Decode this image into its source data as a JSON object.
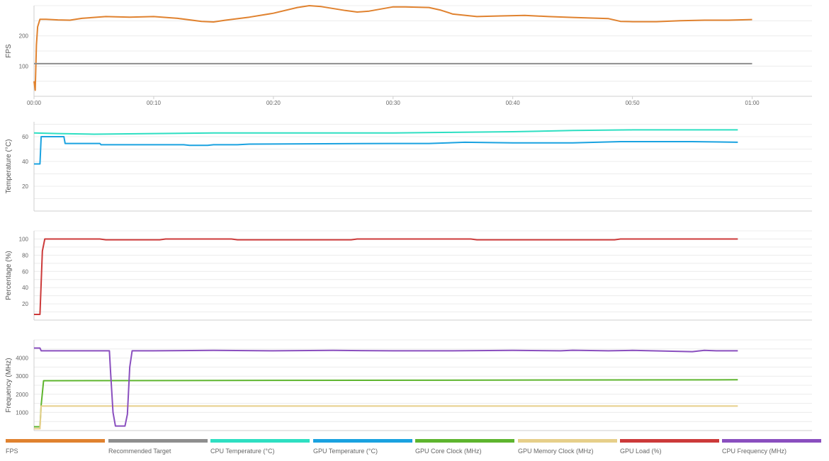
{
  "chart_data": [
    {
      "type": "line",
      "ylabel": "FPS",
      "yticks": [
        "100",
        "200"
      ],
      "ylim": [
        0,
        300
      ],
      "xlabel": "",
      "xticks": [
        "00:00",
        "00:10",
        "00:20",
        "00:30",
        "00:40",
        "00:50",
        "01:00"
      ],
      "xlim": [
        0,
        65
      ],
      "grid": true,
      "series": [
        {
          "name": "FPS",
          "color": "#e0822f",
          "x": [
            0,
            0.1,
            0.2,
            0.3,
            0.5,
            1,
            2,
            3,
            4,
            6,
            8,
            10,
            12,
            14,
            15,
            16,
            18,
            20,
            22,
            23,
            24,
            26,
            27,
            28,
            30,
            31,
            33,
            34,
            35,
            37,
            39,
            41,
            43,
            45,
            48,
            49,
            50,
            52,
            54,
            56,
            58,
            60
          ],
          "y": [
            50,
            20,
            170,
            230,
            255,
            255,
            253,
            252,
            258,
            264,
            262,
            264,
            258,
            248,
            246,
            252,
            262,
            275,
            294,
            300,
            297,
            284,
            279,
            282,
            296,
            296,
            294,
            285,
            272,
            264,
            266,
            268,
            264,
            261,
            257,
            248,
            247,
            247,
            250,
            252,
            252,
            254
          ]
        },
        {
          "name": "Recommended Target",
          "color": "#8e8e8e",
          "x": [
            0,
            60
          ],
          "y": [
            108,
            108
          ]
        }
      ]
    },
    {
      "type": "line",
      "ylabel": "Temperature (°C)",
      "yticks": [
        "20",
        "40",
        "60"
      ],
      "ylim": [
        0,
        72
      ],
      "xlim": [
        0,
        65
      ],
      "grid": true,
      "series": [
        {
          "name": "CPU Temperature (°C)",
          "color": "#2edfc2",
          "x": [
            0,
            2,
            5,
            10,
            15,
            20,
            25,
            30,
            35,
            40,
            45,
            50,
            55,
            58.8
          ],
          "y": [
            63,
            62.5,
            62,
            62.5,
            63,
            63,
            63,
            63,
            63.5,
            64,
            65,
            65.5,
            65.5,
            65.5
          ]
        },
        {
          "name": "GPU Temperature (°C)",
          "color": "#1aa2e0",
          "x": [
            0,
            0.5,
            0.6,
            2.5,
            2.6,
            5.5,
            5.6,
            12.5,
            13,
            14.5,
            15,
            17,
            18,
            30,
            33,
            36,
            40,
            45,
            49,
            55,
            58.8
          ],
          "y": [
            38,
            38,
            60,
            60,
            54.5,
            54.5,
            53.5,
            53.5,
            53,
            53,
            53.5,
            53.5,
            54,
            54.5,
            54.5,
            55.5,
            55,
            55,
            56,
            56,
            55.5
          ]
        }
      ]
    },
    {
      "type": "line",
      "ylabel": "Percentage (%)",
      "yticks": [
        "20",
        "40",
        "60",
        "80",
        "100"
      ],
      "ylim": [
        0,
        110
      ],
      "xlim": [
        0,
        65
      ],
      "grid": true,
      "series": [
        {
          "name": "GPU Load (%)",
          "color": "#cc3a3a",
          "x": [
            0,
            0.5,
            0.7,
            0.9,
            5.5,
            6,
            10.5,
            11,
            16.5,
            17,
            26.5,
            27,
            36.5,
            37,
            48.5,
            49,
            58.8
          ],
          "y": [
            7,
            7,
            85,
            100,
            100,
            99,
            99,
            100,
            100,
            99,
            99,
            100,
            100,
            99,
            99,
            100,
            100
          ]
        }
      ]
    },
    {
      "type": "line",
      "ylabel": "Frequency (MHz)",
      "yticks": [
        "1000",
        "2000",
        "3000",
        "4000"
      ],
      "ylim": [
        0,
        5000
      ],
      "xlim": [
        0,
        65
      ],
      "grid": true,
      "series": [
        {
          "name": "GPU Core Clock (MHz)",
          "color": "#5eb52e",
          "x": [
            0,
            0.5,
            0.6,
            0.8,
            58.8
          ],
          "y": [
            210,
            210,
            1400,
            2750,
            2800
          ]
        },
        {
          "name": "GPU Memory Clock (MHz)",
          "color": "#e6cf8a",
          "x": [
            0,
            0.5,
            0.6,
            58.8
          ],
          "y": [
            100,
            100,
            1350,
            1350
          ]
        },
        {
          "name": "GPU Load (%)",
          "color": "#cc3a3a",
          "hidden": true,
          "x": [],
          "y": []
        },
        {
          "name": "CPU Frequency (MHz)",
          "color": "#8a4fbf",
          "x": [
            0,
            0.5,
            0.6,
            3,
            6.3,
            6.4,
            6.6,
            6.8,
            7.6,
            7.8,
            8,
            8.2,
            10,
            15,
            20,
            25,
            30,
            35,
            40,
            44,
            45,
            48,
            50,
            55,
            56,
            57,
            58.8
          ],
          "y": [
            4550,
            4550,
            4400,
            4400,
            4400,
            3200,
            1000,
            250,
            250,
            900,
            3500,
            4400,
            4400,
            4420,
            4400,
            4420,
            4400,
            4400,
            4420,
            4400,
            4430,
            4400,
            4420,
            4350,
            4420,
            4400,
            4400
          ]
        }
      ]
    }
  ],
  "legend": [
    {
      "label": "FPS",
      "color": "#e0822f"
    },
    {
      "label": "Recommended Target",
      "color": "#8e8e8e"
    },
    {
      "label": "CPU Temperature (°C)",
      "color": "#2edfc2"
    },
    {
      "label": "GPU Temperature (°C)",
      "color": "#1aa2e0"
    },
    {
      "label": "GPU Core Clock (MHz)",
      "color": "#5eb52e"
    },
    {
      "label": "GPU Memory Clock (MHz)",
      "color": "#e6cf8a"
    },
    {
      "label": "GPU Load (%)",
      "color": "#cc3a3a"
    },
    {
      "label": "CPU Frequency (MHz)",
      "color": "#8a4fbf"
    }
  ]
}
